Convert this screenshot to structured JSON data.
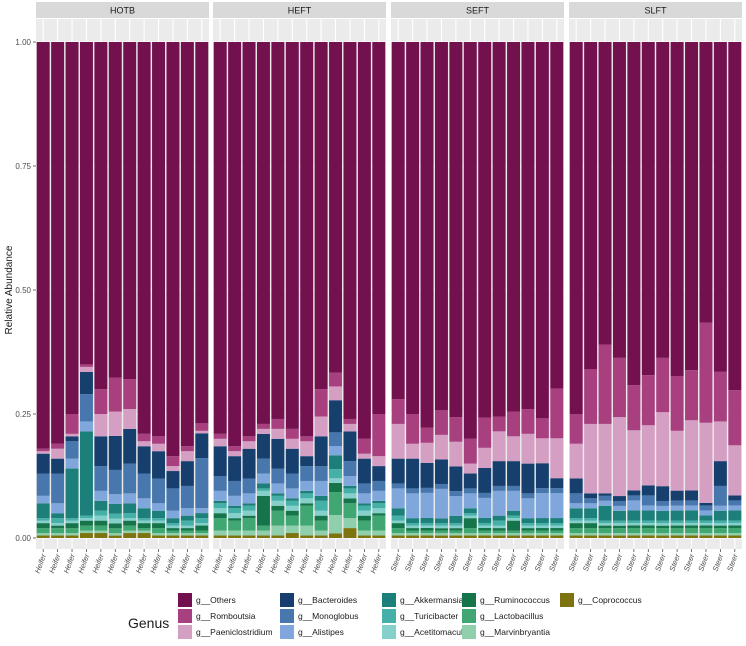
{
  "chart_data": {
    "type": "bar",
    "stacked": true,
    "ylabel": "Relative Abundance",
    "xlabel": "",
    "ylim": [
      0,
      1
    ],
    "y_ticks": [
      "0.00",
      "0.25",
      "0.50",
      "0.75",
      "1.00"
    ],
    "y_tick_values": [
      0,
      0.25,
      0.5,
      0.75,
      1
    ],
    "legend_title": "Genus",
    "legend_position": "bottom",
    "panels": [
      {
        "name": "HOTB",
        "samples": [
          "Heifer",
          "Heifer",
          "Heifer",
          "Heifer",
          "Heifer",
          "Heifer",
          "Heifer",
          "Heifer",
          "Heifer",
          "Heifer",
          "Heifer",
          "Heifer"
        ]
      },
      {
        "name": "HEFT",
        "samples": [
          "Heifer",
          "Heifer",
          "Heifer",
          "Heifer",
          "Heifer",
          "Heifer",
          "Heifer",
          "Heifer",
          "Heifer",
          "Heifer",
          "Heifer",
          "Heifer"
        ]
      },
      {
        "name": "SEFT",
        "samples": [
          "Steer",
          "Steer",
          "Steer",
          "Steer",
          "Steer",
          "Steer",
          "Steer",
          "Steer",
          "Steer",
          "Steer",
          "Steer",
          "Steer"
        ]
      },
      {
        "name": "SLFT",
        "samples": [
          "Steer",
          "Steer",
          "Steer",
          "Steer",
          "Steer",
          "Steer",
          "Steer",
          "Steer",
          "Steer",
          "Steer",
          "Steer",
          "Steer"
        ]
      }
    ],
    "series": [
      {
        "name": "g__Others",
        "color": "#73114f"
      },
      {
        "name": "g__Romboutsia",
        "color": "#a8407f"
      },
      {
        "name": "g__Paeniclostridium",
        "color": "#d59fc4"
      },
      {
        "name": "g__Bacteroides",
        "color": "#163f6e"
      },
      {
        "name": "g__Monoglobus",
        "color": "#4877ad"
      },
      {
        "name": "g__Alistipes",
        "color": "#7fa7dc"
      },
      {
        "name": "g__Akkermansia",
        "color": "#1d7f7a"
      },
      {
        "name": "g__Turicibacter",
        "color": "#45b0a8"
      },
      {
        "name": "g__Acetitomaculum",
        "color": "#86d0cb"
      },
      {
        "name": "g__Ruminococcus",
        "color": "#157449"
      },
      {
        "name": "g__Lactobacillus",
        "color": "#40a773"
      },
      {
        "name": "g__Marvinbryantia",
        "color": "#8fcfab"
      },
      {
        "name": "g__Coprococcus",
        "color": "#7d7410"
      }
    ],
    "stack_order_bottom_to_top": [
      "g__Coprococcus",
      "g__Marvinbryantia",
      "g__Lactobacillus",
      "g__Ruminococcus",
      "g__Acetitomaculum",
      "g__Turicibacter",
      "g__Akkermansia",
      "g__Alistipes",
      "g__Monoglobus",
      "g__Bacteroides",
      "g__Paeniclostridium",
      "g__Romboutsia",
      "g__Others"
    ],
    "values": {
      "HOTB": [
        [
          0.005,
          0.005,
          0.005,
          0.01,
          0.01,
          0.005,
          0.01,
          0.01,
          0.005,
          0.005,
          0.005,
          0.005
        ],
        [
          0.005,
          0.005,
          0.005,
          0.005,
          0.005,
          0.005,
          0.005,
          0.005,
          0.005,
          0.005,
          0.005,
          0.005
        ],
        [
          0.01,
          0.01,
          0.01,
          0.01,
          0.01,
          0.01,
          0.01,
          0.005,
          0.01,
          0.005,
          0.005,
          0.005
        ],
        [
          0.01,
          0.005,
          0.01,
          0.01,
          0.01,
          0.01,
          0.01,
          0.01,
          0.01,
          0.005,
          0.005,
          0.01
        ],
        [
          0.005,
          0.005,
          0.005,
          0.005,
          0.01,
          0.01,
          0.005,
          0.005,
          0.005,
          0.005,
          0.005,
          0.005
        ],
        [
          0.005,
          0.01,
          0.005,
          0.005,
          0.01,
          0.01,
          0.01,
          0.005,
          0.005,
          0.005,
          0.01,
          0.01
        ],
        [
          0.03,
          0.01,
          0.1,
          0.17,
          0.02,
          0.02,
          0.02,
          0.02,
          0.015,
          0.01,
          0.01,
          0.01
        ],
        [
          0.015,
          0.02,
          0.02,
          0.02,
          0.02,
          0.02,
          0.02,
          0.02,
          0.015,
          0.015,
          0.015,
          0.01
        ],
        [
          0.045,
          0.06,
          0.035,
          0.055,
          0.05,
          0.05,
          0.06,
          0.05,
          0.05,
          0.045,
          0.045,
          0.1
        ],
        [
          0.04,
          0.03,
          0.01,
          0.045,
          0.06,
          0.07,
          0.07,
          0.055,
          0.055,
          0.035,
          0.05,
          0.05
        ],
        [
          0.005,
          0.02,
          0.005,
          0.01,
          0.045,
          0.05,
          0.04,
          0.01,
          0.015,
          0.01,
          0.02,
          0.005
        ],
        [
          0.005,
          0.01,
          0.04,
          0.005,
          0.05,
          0.07,
          0.06,
          0.015,
          0.015,
          0.02,
          0.01,
          0.015
        ],
        [
          0.82,
          0.81,
          0.75,
          0.65,
          0.7,
          0.69,
          0.68,
          0.79,
          0.795,
          0.835,
          0.815,
          0.765
        ]
      ],
      "HEFT": [
        [
          0.005,
          0.005,
          0.005,
          0.005,
          0.005,
          0.01,
          0.005,
          0.005,
          0.01,
          0.02,
          0.005,
          0.005
        ],
        [
          0.01,
          0.01,
          0.01,
          0.01,
          0.02,
          0.015,
          0.02,
          0.01,
          0.04,
          0.02,
          0.01,
          0.01
        ],
        [
          0.025,
          0.02,
          0.025,
          0.01,
          0.03,
          0.02,
          0.04,
          0.02,
          0.05,
          0.03,
          0.02,
          0.03
        ],
        [
          0.01,
          0.005,
          0.005,
          0.06,
          0.01,
          0.01,
          0.005,
          0.01,
          0.02,
          0.01,
          0.01,
          0.005
        ],
        [
          0.01,
          0.01,
          0.01,
          0.01,
          0.01,
          0.01,
          0.01,
          0.01,
          0.01,
          0.01,
          0.01,
          0.01
        ],
        [
          0.01,
          0.01,
          0.01,
          0.005,
          0.01,
          0.01,
          0.01,
          0.02,
          0.02,
          0.01,
          0.01,
          0.01
        ],
        [
          0.005,
          0.005,
          0.005,
          0.01,
          0.005,
          0.005,
          0.005,
          0.01,
          0.03,
          0.005,
          0.005,
          0.005
        ],
        [
          0.02,
          0.02,
          0.02,
          0.02,
          0.02,
          0.02,
          0.02,
          0.03,
          0.02,
          0.02,
          0.02,
          0.02
        ],
        [
          0.03,
          0.03,
          0.03,
          0.03,
          0.03,
          0.03,
          0.03,
          0.03,
          0.03,
          0.03,
          0.02,
          0.02
        ],
        [
          0.06,
          0.05,
          0.06,
          0.05,
          0.06,
          0.05,
          0.02,
          0.06,
          0.07,
          0.06,
          0.05,
          0.03
        ],
        [
          0.015,
          0.01,
          0.015,
          0.01,
          0.02,
          0.02,
          0.03,
          0.04,
          0.03,
          0.015,
          0.01,
          0.02
        ],
        [
          0.01,
          0.01,
          0.01,
          0.01,
          0.02,
          0.02,
          0.01,
          0.055,
          0.03,
          0.01,
          0.03,
          0.085
        ],
        [
          0.79,
          0.815,
          0.795,
          0.77,
          0.76,
          0.78,
          0.795,
          0.7,
          0.72,
          0.76,
          0.8,
          0.75
        ]
      ],
      "SEFT": [
        [
          0.005,
          0.005,
          0.005,
          0.005,
          0.005,
          0.005,
          0.005,
          0.005,
          0.005,
          0.005,
          0.005,
          0.005
        ],
        [
          0.005,
          0.005,
          0.005,
          0.005,
          0.005,
          0.005,
          0.005,
          0.005,
          0.005,
          0.005,
          0.005,
          0.005
        ],
        [
          0.01,
          0.005,
          0.005,
          0.005,
          0.005,
          0.01,
          0.005,
          0.005,
          0.005,
          0.005,
          0.005,
          0.005
        ],
        [
          0.01,
          0.005,
          0.005,
          0.005,
          0.005,
          0.02,
          0.005,
          0.005,
          0.02,
          0.005,
          0.005,
          0.005
        ],
        [
          0.005,
          0.005,
          0.005,
          0.005,
          0.005,
          0.005,
          0.005,
          0.005,
          0.005,
          0.005,
          0.005,
          0.005
        ],
        [
          0.01,
          0.005,
          0.005,
          0.005,
          0.005,
          0.005,
          0.005,
          0.01,
          0.005,
          0.005,
          0.005,
          0.005
        ],
        [
          0.015,
          0.01,
          0.01,
          0.01,
          0.015,
          0.01,
          0.01,
          0.01,
          0.01,
          0.01,
          0.01,
          0.01
        ],
        [
          0.04,
          0.05,
          0.05,
          0.06,
          0.04,
          0.03,
          0.04,
          0.05,
          0.04,
          0.04,
          0.05,
          0.05
        ],
        [
          0.01,
          0.01,
          0.01,
          0.01,
          0.01,
          0.01,
          0.01,
          0.01,
          0.01,
          0.01,
          0.01,
          0.01
        ],
        [
          0.05,
          0.06,
          0.05,
          0.05,
          0.05,
          0.03,
          0.05,
          0.05,
          0.05,
          0.06,
          0.05,
          0.02
        ],
        [
          0.07,
          0.03,
          0.04,
          0.05,
          0.05,
          0.02,
          0.04,
          0.06,
          0.05,
          0.06,
          0.05,
          0.08
        ],
        [
          0.05,
          0.06,
          0.03,
          0.05,
          0.05,
          0.05,
          0.06,
          0.03,
          0.05,
          0.05,
          0.04,
          0.1
        ],
        [
          0.72,
          0.75,
          0.77,
          0.75,
          0.76,
          0.8,
          0.75,
          0.755,
          0.745,
          0.74,
          0.755,
          0.695
        ]
      ],
      "SLFT": [
        [
          0.005,
          0.005,
          0.005,
          0.005,
          0.005,
          0.005,
          0.005,
          0.005,
          0.005,
          0.005,
          0.005,
          0.005
        ],
        [
          0.005,
          0.005,
          0.005,
          0.005,
          0.005,
          0.005,
          0.005,
          0.005,
          0.005,
          0.005,
          0.005,
          0.005
        ],
        [
          0.01,
          0.01,
          0.01,
          0.01,
          0.01,
          0.01,
          0.01,
          0.01,
          0.01,
          0.01,
          0.01,
          0.01
        ],
        [
          0.01,
          0.01,
          0.005,
          0.005,
          0.005,
          0.005,
          0.005,
          0.005,
          0.005,
          0.005,
          0.005,
          0.005
        ],
        [
          0.005,
          0.005,
          0.005,
          0.005,
          0.005,
          0.005,
          0.005,
          0.005,
          0.005,
          0.005,
          0.005,
          0.005
        ],
        [
          0.005,
          0.005,
          0.005,
          0.005,
          0.005,
          0.005,
          0.005,
          0.005,
          0.005,
          0.005,
          0.005,
          0.005
        ],
        [
          0.02,
          0.02,
          0.03,
          0.02,
          0.02,
          0.02,
          0.02,
          0.02,
          0.02,
          0.01,
          0.02,
          0.02
        ],
        [
          0.01,
          0.01,
          0.01,
          0.01,
          0.02,
          0.01,
          0.01,
          0.01,
          0.01,
          0.01,
          0.01,
          0.01
        ],
        [
          0.02,
          0.01,
          0.01,
          0.01,
          0.01,
          0.02,
          0.01,
          0.01,
          0.01,
          0.01,
          0.04,
          0.01
        ],
        [
          0.03,
          0.01,
          0.005,
          0.01,
          0.01,
          0.02,
          0.03,
          0.02,
          0.02,
          0.005,
          0.05,
          0.01
        ],
        [
          0.07,
          0.14,
          0.14,
          0.16,
          0.12,
          0.12,
          0.15,
          0.12,
          0.14,
          0.16,
          0.08,
          0.1
        ],
        [
          0.06,
          0.11,
          0.16,
          0.12,
          0.09,
          0.1,
          0.11,
          0.11,
          0.1,
          0.2,
          0.1,
          0.11
        ],
        [
          0.75,
          0.66,
          0.61,
          0.64,
          0.685,
          0.665,
          0.64,
          0.67,
          0.655,
          0.56,
          0.665,
          0.695
        ]
      ]
    }
  }
}
